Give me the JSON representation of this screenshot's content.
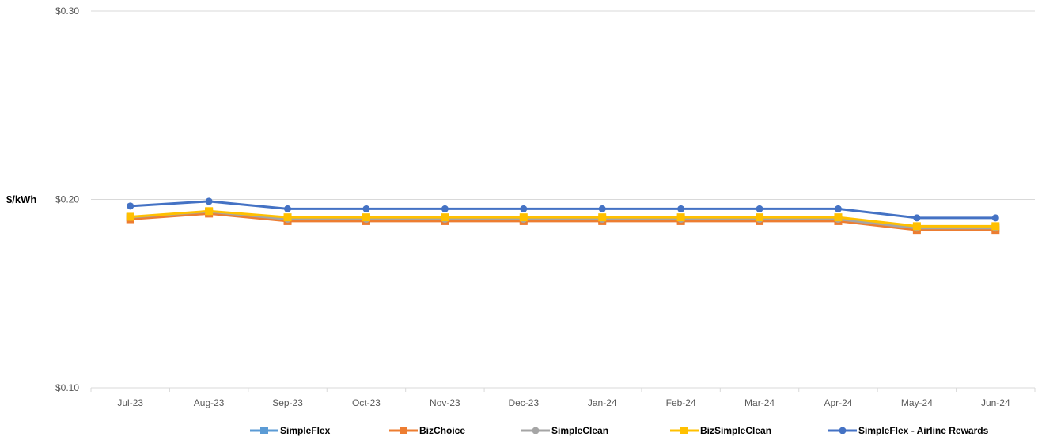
{
  "chart_data": {
    "type": "line",
    "ylabel": "$/kWh",
    "ylim": [
      0.1,
      0.3
    ],
    "y_ticks": [
      {
        "value": 0.3,
        "label": "$0.30"
      },
      {
        "value": 0.2,
        "label": "$0.20"
      },
      {
        "value": 0.1,
        "label": "$0.10"
      }
    ],
    "categories": [
      "Jul-23",
      "Aug-23",
      "Sep-23",
      "Oct-23",
      "Nov-23",
      "Dec-23",
      "Jan-24",
      "Feb-24",
      "Mar-24",
      "Apr-24",
      "May-24",
      "Jun-24"
    ],
    "grid": "horizontal",
    "legend_position": "bottom",
    "series": [
      {
        "name": "SimpleFlex",
        "color": "#5B9BD5",
        "marker": "square",
        "values": [
          0.1905,
          0.1935,
          0.1895,
          0.1895,
          0.1895,
          0.1895,
          0.1895,
          0.1895,
          0.1895,
          0.1895,
          0.1848,
          0.1848
        ]
      },
      {
        "name": "BizChoice",
        "color": "#ED7D31",
        "marker": "square",
        "values": [
          0.1895,
          0.1925,
          0.1885,
          0.1885,
          0.1885,
          0.1885,
          0.1885,
          0.1885,
          0.1885,
          0.1885,
          0.1838,
          0.1838
        ]
      },
      {
        "name": "SimpleClean",
        "color": "#A5A5A5",
        "marker": "circle",
        "values": [
          0.1905,
          0.1935,
          0.1895,
          0.1895,
          0.1895,
          0.1895,
          0.1895,
          0.1895,
          0.1895,
          0.1895,
          0.1848,
          0.1848
        ]
      },
      {
        "name": "BizSimpleClean",
        "color": "#FFC000",
        "marker": "square",
        "values": [
          0.1908,
          0.1938,
          0.1905,
          0.1905,
          0.1905,
          0.1905,
          0.1905,
          0.1905,
          0.1905,
          0.1905,
          0.1858,
          0.1858
        ]
      },
      {
        "name": "SimpleFlex - Airline Rewards",
        "color": "#4472C4",
        "marker": "circle",
        "values": [
          0.1965,
          0.199,
          0.195,
          0.195,
          0.195,
          0.195,
          0.195,
          0.195,
          0.195,
          0.195,
          0.1902,
          0.1902
        ]
      }
    ]
  }
}
